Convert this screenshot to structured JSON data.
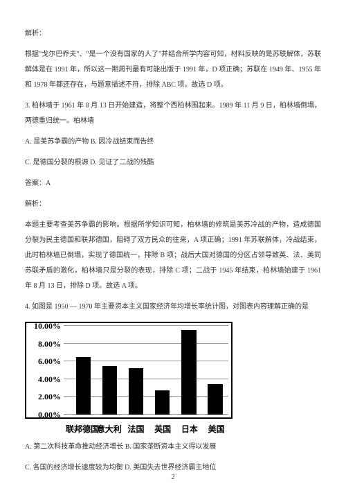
{
  "paragraphs": {
    "p1": "解析：",
    "p2": "根据\"戈尔巴乔夫\"、\"是一个没有国家的人了\"并结合所学内容可知，材料反映的是苏联解体，苏联解体是在 1991 年，所以这一期周刊最有可能出版于 1991 年，D 项正确；苏联在 1949 年、1955 年和 1978 年都还存在，与题意描述不符，排除 ABC 项。故选 D 项。",
    "p3": "3. 柏林墙于 1961 年 8 月 13 日开始建造，将整个西柏林围起来。1989 年 11 月 9 日，柏林墙倒塌，两德重归统一。柏林墙",
    "p4": "A. 是美苏争霸的产物 B. 因冷战结束而告终",
    "p5": "C. 是德国分裂的根源 D. 见证了二战的残酷",
    "p6": "答案：A",
    "p7": "解析：",
    "p8": "本题主要考查美苏争霸的影响。根据所学知识可知，柏林墙的修筑是美苏冷战的产物，造成德国分裂为民主德国和联邦德国，阻碍了双方民众的往来，A 项正确；1991 年苏联解体，冷战结束，此时柏林墙已倒塌，实现了德国统一，排除 B 项；战后大国对德国的分区占领导致英、法、美同苏联矛盾的激化，柏林墙只是分裂的表现，排除 C 项；二战于 1945 年结束，柏林墙始建于 1961 年 8 月 13 日，排除 D 项。故选 A 项。",
    "p9": "4. 如图是 1950 — 1970 年主要资本主义国家经济年均增长率统计图，对图表内容理解正确的是",
    "p10": "A. 第二次科技革命推动经济增长 B. 国家垄断资本主义得以发展",
    "p11": "C. 各国的经济增长速度较为均衡 D. 美国失去世界经济霸主地位"
  },
  "chart": {
    "type": "bar",
    "y_max": 10,
    "y_tick_step": 2,
    "y_suffix": ".00%",
    "background_color": "#ffffff",
    "grid_color": "#999999",
    "bar_color": "#000000",
    "label_fontsize": 12,
    "bar_width_pct": 9,
    "categories": [
      "联邦德国",
      "意大利",
      "法国",
      "英国",
      "日本",
      "美国"
    ],
    "values": [
      6.5,
      5.5,
      5.2,
      2.7,
      9.5,
      3.4
    ],
    "x_positions_pct": [
      12,
      28,
      44,
      60,
      76,
      92
    ]
  },
  "page_number": "2"
}
